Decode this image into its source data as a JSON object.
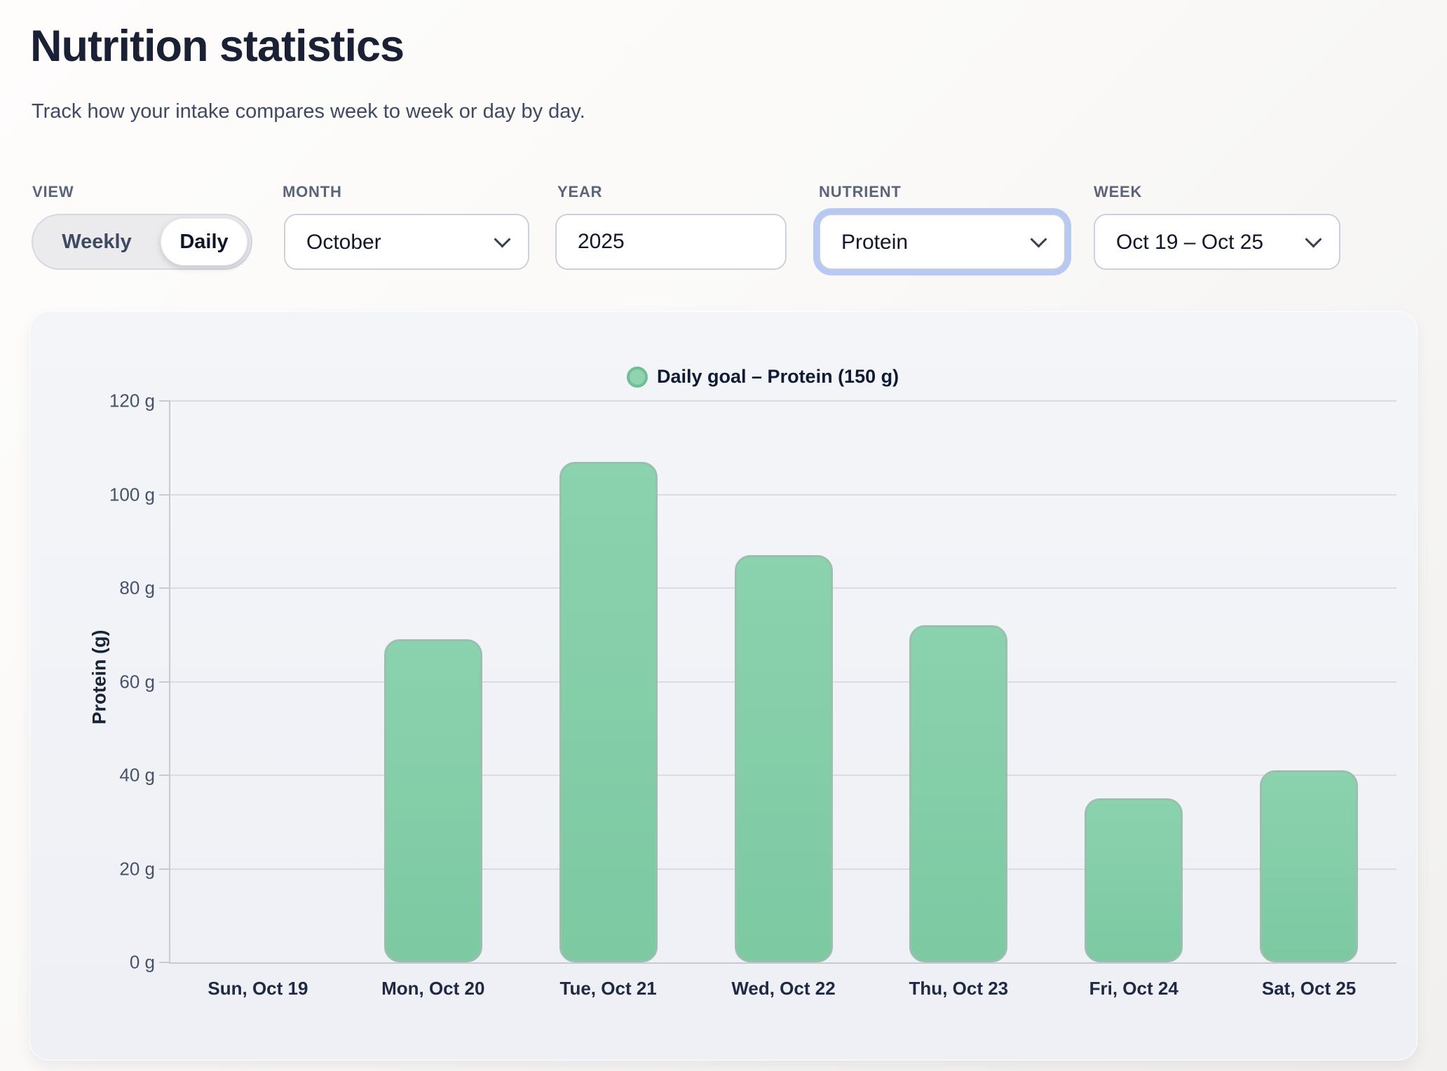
{
  "page": {
    "title": "Nutrition statistics",
    "subtitle": "Track how your intake compares week to week or day by day."
  },
  "filters": {
    "view": {
      "label": "VIEW",
      "options": [
        "Weekly",
        "Daily"
      ],
      "selected": "Daily"
    },
    "month": {
      "label": "MONTH",
      "value": "October"
    },
    "year": {
      "label": "YEAR",
      "value": "2025"
    },
    "nutrient": {
      "label": "NUTRIENT",
      "value": "Protein",
      "focused": true
    },
    "week": {
      "label": "WEEK",
      "value": "Oct 19 – Oct 25"
    }
  },
  "ui_colors": {
    "focus_ring": "#b7c9f2",
    "accent_green": "#80cda6",
    "panel_background": "#eff1f6"
  },
  "chart_data": {
    "type": "bar",
    "legend": "Daily goal – Protein (150 g)",
    "daily_goal_g": 150,
    "ylabel": "Protein (g)",
    "unit": "g",
    "categories": [
      "Sun, Oct 19",
      "Mon, Oct 20",
      "Tue, Oct 21",
      "Wed, Oct 22",
      "Thu, Oct 23",
      "Fri, Oct 24",
      "Sat, Oct 25"
    ],
    "values": [
      0,
      69,
      107,
      87,
      72,
      35,
      41
    ],
    "ylim": [
      0,
      120
    ],
    "ytick_step": 20,
    "yticks": [
      "120 g",
      "100 g",
      "80 g",
      "60 g",
      "40 g",
      "20 g",
      "0 g"
    ],
    "grid": true,
    "legend_position": "top",
    "colors": {
      "bar": "#7cc9a2",
      "bar_top": "#8bd2ae",
      "bar_border": "#9abfad",
      "legend_fill": "#90d3af",
      "legend_border": "#6fbf95",
      "grid": "#d9dce3",
      "axis": "#c6cbd3"
    }
  }
}
